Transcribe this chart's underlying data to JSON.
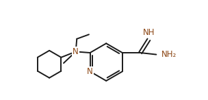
{
  "bg_color": "#ffffff",
  "line_color": "#1a1a1a",
  "N_color": "#8B4513",
  "line_width": 1.4,
  "font_size": 8.5,
  "fig_width": 3.04,
  "fig_height": 1.46,
  "xlim": [
    -2.8,
    4.2
  ],
  "ylim": [
    -2.0,
    2.5
  ]
}
